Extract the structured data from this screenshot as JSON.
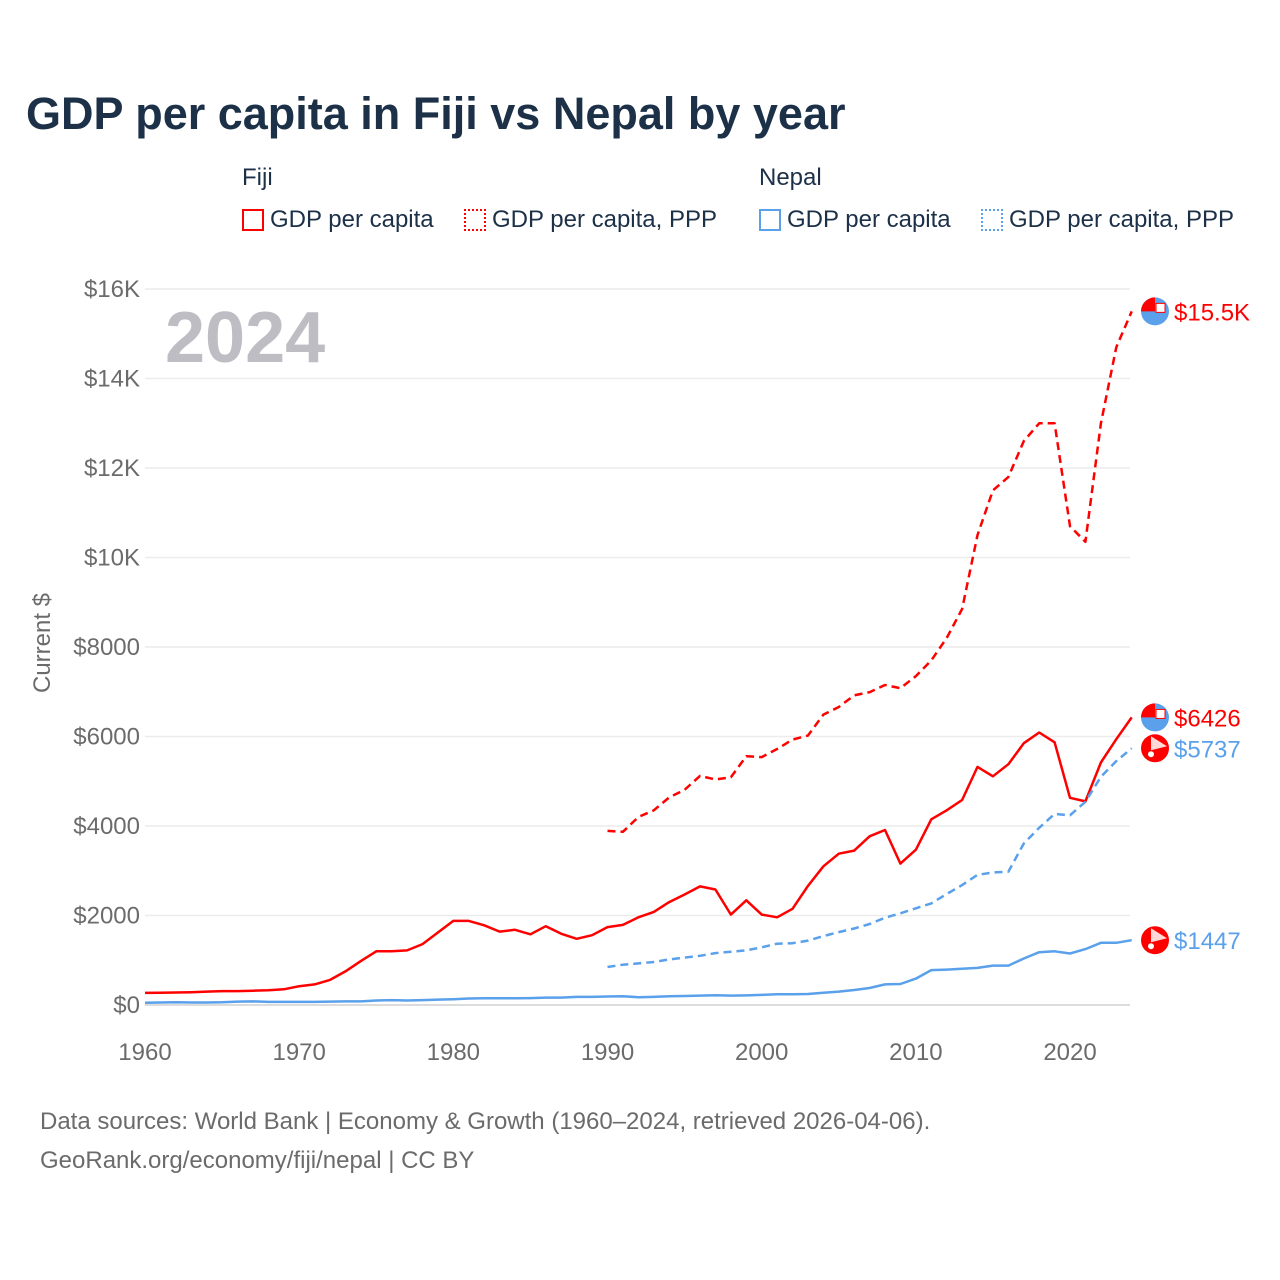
{
  "title": "GDP per capita in Fiji vs Nepal by year",
  "legend": {
    "groups": [
      {
        "name": "Fiji",
        "items": [
          "GDP per capita",
          "GDP per capita, PPP"
        ],
        "color": "#ff0000"
      },
      {
        "name": "Nepal",
        "items": [
          "GDP per capita",
          "GDP per capita, PPP"
        ],
        "color": "#5aa0ea"
      }
    ]
  },
  "year_label": "2024",
  "footer": {
    "line1": "Data sources: World Bank | Economy & Growth (1960–2024, retrieved 2026-04-06).",
    "line2": "GeoRank.org/economy/fiji/nepal | CC BY"
  },
  "chart_data": {
    "type": "line",
    "title": "GDP per capita in Fiji vs Nepal by year",
    "xlabel": "",
    "ylabel": "Current $",
    "xlim": [
      1960,
      2024
    ],
    "ylim": [
      0,
      16000
    ],
    "x_ticks": [
      1960,
      1970,
      1980,
      1990,
      2000,
      2010,
      2020
    ],
    "y_ticks": [
      0,
      2000,
      4000,
      6000,
      8000,
      10000,
      12000,
      14000,
      16000
    ],
    "y_tick_labels": [
      "$0",
      "$2000",
      "$4000",
      "$6000",
      "$8000",
      "$10K",
      "$12K",
      "$14K",
      "$16K"
    ],
    "grid": true,
    "legend_position": "top",
    "series": [
      {
        "name": "Fiji GDP per capita",
        "color": "#ff0000",
        "dash": false,
        "start": 1960,
        "end_label": "$6426",
        "values": [
          270,
          275,
          280,
          285,
          300,
          310,
          310,
          320,
          330,
          350,
          420,
          460,
          560,
          750,
          980,
          1200,
          1200,
          1220,
          1360,
          1620,
          1880,
          1880,
          1780,
          1640,
          1680,
          1580,
          1760,
          1590,
          1480,
          1560,
          1740,
          1790,
          1960,
          2080,
          2300,
          2470,
          2650,
          2580,
          2020,
          2340,
          2020,
          1960,
          2150,
          2660,
          3100,
          3380,
          3450,
          3770,
          3910,
          3160,
          3470,
          4150,
          4350,
          4580,
          5320,
          5110,
          5380,
          5850,
          6090,
          5870,
          4630,
          4550,
          5420,
          5940,
          6426
        ]
      },
      {
        "name": "Fiji GDP per capita, PPP",
        "color": "#ff0000",
        "dash": true,
        "start": 1990,
        "end_label": "$15.5K",
        "values": [
          3890,
          3870,
          4200,
          4350,
          4640,
          4810,
          5120,
          5040,
          5090,
          5560,
          5540,
          5720,
          5930,
          6020,
          6490,
          6660,
          6920,
          6990,
          7150,
          7080,
          7350,
          7700,
          8200,
          8850,
          10500,
          11500,
          11800,
          12600,
          13000,
          13000,
          10700,
          10350,
          13000,
          14700,
          15500
        ]
      },
      {
        "name": "Nepal GDP per capita",
        "color": "#5aa0ea",
        "dash": false,
        "start": 1960,
        "end_label": "$1447",
        "values": [
          50,
          55,
          60,
          55,
          55,
          60,
          75,
          80,
          70,
          70,
          70,
          70,
          75,
          80,
          80,
          100,
          110,
          100,
          110,
          120,
          130,
          145,
          150,
          150,
          150,
          155,
          165,
          165,
          180,
          180,
          190,
          195,
          175,
          180,
          195,
          200,
          210,
          220,
          210,
          215,
          225,
          240,
          240,
          245,
          275,
          300,
          335,
          380,
          460,
          470,
          590,
          780,
          790,
          810,
          830,
          880,
          880,
          1040,
          1180,
          1200,
          1150,
          1250,
          1390,
          1390,
          1447
        ]
      },
      {
        "name": "Nepal GDP per capita, PPP",
        "color": "#5aa0ea",
        "dash": true,
        "start": 1990,
        "end_label": "$5737",
        "values": [
          850,
          900,
          930,
          960,
          1020,
          1060,
          1100,
          1160,
          1190,
          1220,
          1290,
          1370,
          1380,
          1440,
          1540,
          1630,
          1710,
          1810,
          1950,
          2050,
          2160,
          2270,
          2480,
          2680,
          2910,
          2960,
          2980,
          3610,
          3960,
          4270,
          4240,
          4540,
          5100,
          5450,
          5737
        ]
      }
    ]
  }
}
